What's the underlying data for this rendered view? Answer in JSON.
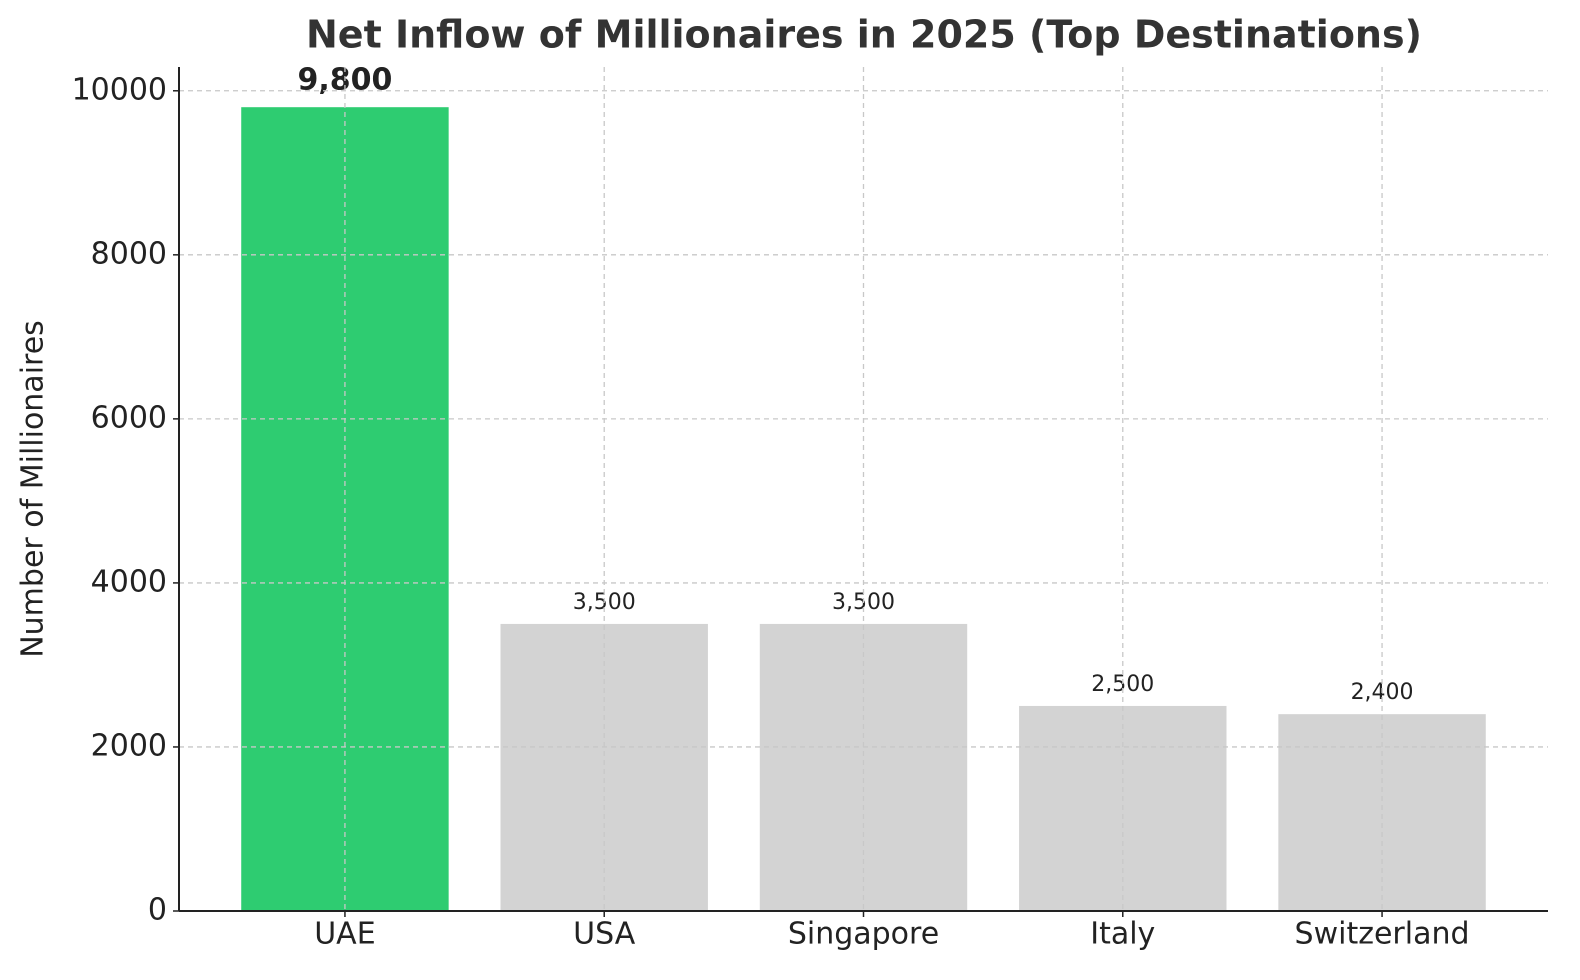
{
  "chart_data": {
    "type": "bar",
    "title": "Net Inflow of Millionaires in 2025 (Top Destinations)",
    "y_label": "Number of Millionaires",
    "categories": [
      "UAE",
      "USA",
      "Singapore",
      "Italy",
      "Switzerland"
    ],
    "values": [
      9800,
      3500,
      3500,
      2500,
      2400
    ],
    "value_labels": [
      "9,800",
      "3,500",
      "3,500",
      "2,500",
      "2,400"
    ],
    "colors": [
      "#2ecc71",
      "#d3d3d3",
      "#d3d3d3",
      "#d3d3d3",
      "#d3d3d3"
    ],
    "ylim": [
      0,
      10290
    ],
    "yticks": [
      0,
      2000,
      4000,
      6000,
      8000,
      10000
    ],
    "grid": true
  }
}
